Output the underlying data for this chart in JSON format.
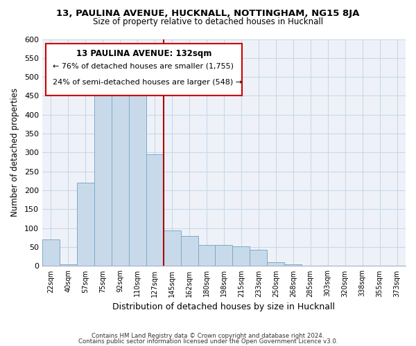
{
  "title": "13, PAULINA AVENUE, HUCKNALL, NOTTINGHAM, NG15 8JA",
  "subtitle": "Size of property relative to detached houses in Hucknall",
  "xlabel": "Distribution of detached houses by size in Hucknall",
  "ylabel": "Number of detached properties",
  "bar_labels": [
    "22sqm",
    "40sqm",
    "57sqm",
    "75sqm",
    "92sqm",
    "110sqm",
    "127sqm",
    "145sqm",
    "162sqm",
    "180sqm",
    "198sqm",
    "215sqm",
    "233sqm",
    "250sqm",
    "268sqm",
    "285sqm",
    "303sqm",
    "320sqm",
    "338sqm",
    "355sqm",
    "373sqm"
  ],
  "bar_values": [
    70,
    5,
    220,
    470,
    475,
    450,
    295,
    95,
    80,
    55,
    55,
    52,
    42,
    10,
    5,
    0,
    0,
    0,
    0,
    0,
    0
  ],
  "bar_color": "#c8daea",
  "bar_edge_color": "#7aaac8",
  "ylim": [
    0,
    600
  ],
  "yticks": [
    0,
    50,
    100,
    150,
    200,
    250,
    300,
    350,
    400,
    450,
    500,
    550,
    600
  ],
  "vline_color": "#aa0000",
  "annotation_title": "13 PAULINA AVENUE: 132sqm",
  "annotation_line1": "← 76% of detached houses are smaller (1,755)",
  "annotation_line2": "24% of semi-detached houses are larger (548) →",
  "footnote1": "Contains HM Land Registry data © Crown copyright and database right 2024.",
  "footnote2": "Contains public sector information licensed under the Open Government Licence v3.0.",
  "grid_color": "#c8d8e8",
  "bg_color": "#eef2f8"
}
